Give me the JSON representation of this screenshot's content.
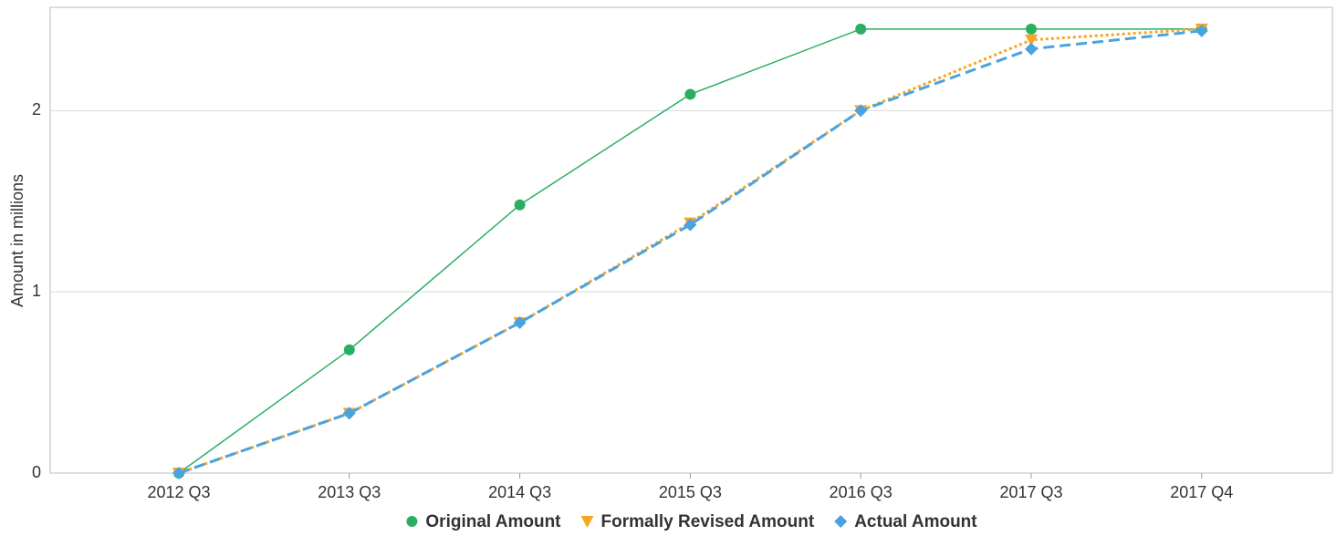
{
  "chart_data": {
    "type": "line",
    "y_label": "Amount in millions",
    "categories": [
      "2012 Q3",
      "2013 Q3",
      "2014 Q3",
      "2015 Q3",
      "2016 Q3",
      "2017 Q3",
      "2017 Q4"
    ],
    "series": [
      {
        "name": "Original Amount",
        "color": "#2aae62",
        "marker": "circle",
        "line_style": "solid",
        "values": [
          0,
          0.68,
          1.48,
          2.09,
          2.45,
          2.45,
          2.45
        ]
      },
      {
        "name": "Formally Revised Amount",
        "color": "#f5a623",
        "marker": "triangle-down",
        "line_style": "dotted",
        "values": [
          0,
          0.33,
          0.83,
          1.38,
          2.0,
          2.39,
          2.45
        ]
      },
      {
        "name": "Actual Amount",
        "color": "#4aa3df",
        "marker": "diamond",
        "line_style": "dashed",
        "values": [
          0,
          0.33,
          0.83,
          1.37,
          2.0,
          2.34,
          2.44
        ]
      }
    ],
    "ylim": [
      0,
      2.57
    ],
    "yticks": [
      0,
      1,
      2
    ],
    "grid": true,
    "legend": "bottom"
  }
}
